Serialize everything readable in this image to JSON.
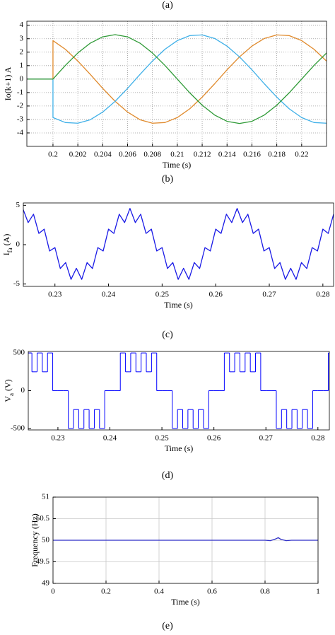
{
  "panel_labels": [
    "(a)",
    "(b)",
    "(c)",
    "(d)",
    "(e)"
  ],
  "chart_data": [
    {
      "type": "line",
      "xlabel": "Time (s)",
      "ylabel": [
        "Io(k+1) A"
      ],
      "xlim": [
        0.1979,
        0.222
      ],
      "ylim": [
        -5,
        4.3
      ],
      "xticks": [
        0.2,
        0.202,
        0.204,
        0.206,
        0.208,
        0.21,
        0.212,
        0.214,
        0.216,
        0.218,
        0.22
      ],
      "yticks": [
        -4,
        -3,
        -2,
        -1,
        0,
        1,
        2,
        3,
        4
      ],
      "grid": true,
      "grid_style": "dotted",
      "x": [
        0.198,
        0.199,
        0.2,
        0.2,
        0.201,
        0.202,
        0.203,
        0.204,
        0.205,
        0.206,
        0.207,
        0.208,
        0.209,
        0.21,
        0.211,
        0.212,
        0.213,
        0.214,
        0.215,
        0.216,
        0.217,
        0.218,
        0.219,
        0.22,
        0.221,
        0.222
      ],
      "series": [
        {
          "color": "#e08a2c",
          "values": [
            0,
            0,
            0,
            2.86,
            2.21,
            1.34,
            0.35,
            -0.69,
            -1.65,
            -2.45,
            -3.02,
            -3.28,
            -3.23,
            -2.86,
            -2.21,
            -1.34,
            -0.35,
            0.69,
            1.65,
            2.45,
            3.02,
            3.28,
            3.23,
            2.86,
            2.21,
            1.34
          ]
        },
        {
          "color": "#3fb0e8",
          "values": [
            0,
            0,
            0,
            -2.86,
            -3.23,
            -3.28,
            -3.02,
            -2.45,
            -1.65,
            -0.69,
            0.35,
            1.34,
            2.21,
            2.86,
            3.23,
            3.28,
            3.02,
            2.45,
            1.65,
            0.69,
            -0.35,
            -1.34,
            -2.21,
            -2.86,
            -3.23,
            -3.28
          ]
        },
        {
          "color": "#2e9a36",
          "values": [
            0,
            0,
            0,
            0,
            1.02,
            1.94,
            2.67,
            3.14,
            3.3,
            3.14,
            2.67,
            1.94,
            1.02,
            0,
            -1.02,
            -1.94,
            -2.67,
            -3.14,
            -3.3,
            -3.14,
            -2.67,
            -1.94,
            -1.02,
            0,
            1.02,
            1.94
          ]
        }
      ]
    },
    {
      "type": "line",
      "xlabel": "Time (s)",
      "ylabel": [
        "I",
        "fa",
        " (A)"
      ],
      "xlim": [
        0.2241,
        0.282
      ],
      "ylim": [
        -5.3,
        5.3
      ],
      "xticks": [
        0.23,
        0.24,
        0.25,
        0.26,
        0.27,
        0.28
      ],
      "yticks": [
        -5,
        0,
        5
      ],
      "grid": false,
      "x": [
        0.224,
        0.225,
        0.226,
        0.227,
        0.228,
        0.229,
        0.23,
        0.231,
        0.232,
        0.233,
        0.234,
        0.235,
        0.236,
        0.237,
        0.238,
        0.239,
        0.24,
        0.241,
        0.242,
        0.243,
        0.244,
        0.245,
        0.246,
        0.247,
        0.248,
        0.249,
        0.25,
        0.251,
        0.252,
        0.253,
        0.254,
        0.255,
        0.256,
        0.257,
        0.258,
        0.259,
        0.26,
        0.261,
        0.262,
        0.263,
        0.264,
        0.265,
        0.266,
        0.267,
        0.268,
        0.269,
        0.27,
        0.271,
        0.272,
        0.273,
        0.274,
        0.275,
        0.276,
        0.277,
        0.278,
        0.279,
        0.28,
        0.281,
        0.282
      ],
      "series": [
        {
          "color": "#1a1ae6",
          "values": [
            4.6,
            2.81,
            3.87,
            1.43,
            1.97,
            -0.8,
            -0.37,
            -3.03,
            -2.27,
            -4.41,
            -3.0,
            -4.41,
            -2.27,
            -3.03,
            -0.37,
            -0.8,
            1.97,
            1.43,
            3.87,
            2.81,
            4.6,
            2.81,
            3.87,
            1.43,
            1.97,
            -0.8,
            -0.37,
            -3.03,
            -2.27,
            -4.41,
            -3.0,
            -4.41,
            -2.27,
            -3.03,
            -0.37,
            -0.8,
            1.97,
            1.43,
            3.87,
            2.81,
            4.6,
            2.81,
            3.87,
            1.43,
            1.97,
            -0.8,
            -0.37,
            -3.03,
            -2.27,
            -4.41,
            -3.0,
            -4.41,
            -2.27,
            -3.03,
            -0.37,
            -0.8,
            1.97,
            1.43,
            3.87
          ]
        }
      ]
    },
    {
      "type": "line",
      "drawstyle": "steps-post",
      "xlabel": "Time (s)",
      "ylabel": [
        "V",
        "a",
        " (V)"
      ],
      "xlim": [
        0.2243,
        0.2822
      ],
      "ylim": [
        -520,
        520
      ],
      "xticks": [
        0.23,
        0.24,
        0.25,
        0.26,
        0.27,
        0.28
      ],
      "yticks": [
        -500,
        0,
        500
      ],
      "grid": false,
      "x": [
        0.224,
        0.225,
        0.226,
        0.227,
        0.228,
        0.229,
        0.23,
        0.231,
        0.232,
        0.233,
        0.234,
        0.235,
        0.236,
        0.237,
        0.238,
        0.239,
        0.24,
        0.241,
        0.242,
        0.243,
        0.244,
        0.245,
        0.246,
        0.247,
        0.248,
        0.249,
        0.25,
        0.251,
        0.252,
        0.253,
        0.254,
        0.255,
        0.256,
        0.257,
        0.258,
        0.259,
        0.26,
        0.261,
        0.262,
        0.263,
        0.264,
        0.265,
        0.266,
        0.267,
        0.268,
        0.269,
        0.27,
        0.271,
        0.272,
        0.273,
        0.274,
        0.275,
        0.276,
        0.277,
        0.278,
        0.279,
        0.28,
        0.281,
        0.282
      ],
      "series": [
        {
          "color": "#0000ff",
          "values": [
            500,
            250,
            500,
            250,
            500,
            0,
            0,
            0,
            -500,
            -250,
            -500,
            -250,
            -500,
            -250,
            -500,
            0,
            0,
            0,
            500,
            250,
            500,
            250,
            500,
            250,
            500,
            0,
            0,
            0,
            -500,
            -250,
            -500,
            -250,
            -500,
            -250,
            -500,
            0,
            0,
            0,
            500,
            250,
            500,
            250,
            500,
            250,
            500,
            0,
            0,
            0,
            -500,
            -250,
            -500,
            -250,
            -500,
            -250,
            -500,
            0,
            0,
            0,
            500
          ]
        }
      ]
    },
    {
      "type": "line",
      "xlabel": "Time (s)",
      "ylabel": [
        "Frequency (Hz)"
      ],
      "xlim": [
        0,
        1
      ],
      "ylim": [
        49,
        51
      ],
      "xticks": [
        0,
        0.2,
        0.4,
        0.6,
        0.8,
        1
      ],
      "yticks": [
        49,
        49.5,
        50,
        50.5,
        51
      ],
      "grid": true,
      "grid_style": "solid",
      "x": [
        0,
        0.1,
        0.2,
        0.3,
        0.4,
        0.5,
        0.6,
        0.7,
        0.8,
        0.82,
        0.84,
        0.85,
        0.86,
        0.88,
        0.9,
        1
      ],
      "series": [
        {
          "color": "#2f2fc8",
          "values": [
            50,
            50,
            50,
            50,
            50,
            50,
            50,
            50,
            50,
            49.99,
            50.03,
            50.06,
            50.02,
            49.99,
            50,
            50
          ]
        }
      ]
    }
  ]
}
